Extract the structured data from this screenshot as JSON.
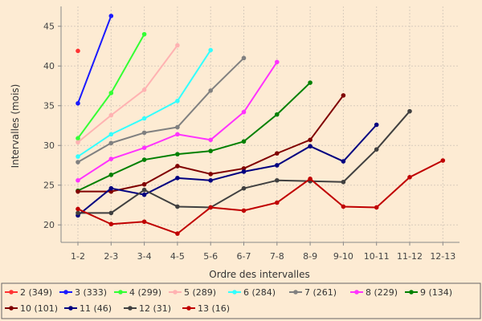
{
  "chart_data": {
    "type": "line",
    "title": "",
    "xlabel": "Ordre des intervalles",
    "ylabel": "Intervalles (mois)",
    "ylim": [
      17.8,
      47.5
    ],
    "yticks": [
      20,
      25,
      30,
      35,
      40,
      45
    ],
    "grid": true,
    "legend_position": "bottom",
    "categories": [
      "1-2",
      "2-3",
      "3-4",
      "4-5",
      "5-6",
      "6-7",
      "7-8",
      "8-9",
      "9-10",
      "10-11",
      "11-12",
      "12-13"
    ],
    "series": [
      {
        "name": "2 (349)",
        "color": "#ff3333",
        "values": [
          41.9,
          null,
          null,
          null,
          null,
          null,
          null,
          null,
          null,
          null,
          null,
          null
        ]
      },
      {
        "name": "3 (333)",
        "color": "#1a1aff",
        "values": [
          35.3,
          46.3,
          null,
          null,
          null,
          null,
          null,
          null,
          null,
          null,
          null,
          null
        ]
      },
      {
        "name": "4 (299)",
        "color": "#33ff33",
        "values": [
          30.9,
          36.6,
          44.0,
          null,
          null,
          null,
          null,
          null,
          null,
          null,
          null,
          null
        ]
      },
      {
        "name": "5 (289)",
        "color": "#ffb2b2",
        "values": [
          30.4,
          33.8,
          37.0,
          42.6,
          null,
          null,
          null,
          null,
          null,
          null,
          null,
          null
        ]
      },
      {
        "name": "6 (284)",
        "color": "#33ffff",
        "values": [
          28.6,
          31.4,
          33.4,
          35.6,
          42.0,
          null,
          null,
          null,
          null,
          null,
          null,
          null
        ]
      },
      {
        "name": "7 (261)",
        "color": "#808080",
        "values": [
          27.9,
          30.3,
          31.6,
          32.3,
          36.9,
          41.0,
          null,
          null,
          null,
          null,
          null,
          null
        ]
      },
      {
        "name": "8 (229)",
        "color": "#ff33ff",
        "values": [
          25.6,
          28.3,
          29.7,
          31.4,
          30.7,
          34.2,
          40.5,
          null,
          null,
          null,
          null,
          null
        ]
      },
      {
        "name": "9 (134)",
        "color": "#008000",
        "values": [
          24.3,
          26.3,
          28.2,
          28.9,
          29.3,
          30.5,
          33.9,
          37.9,
          null,
          null,
          null,
          null
        ]
      },
      {
        "name": "10 (101)",
        "color": "#800000",
        "values": [
          24.2,
          24.2,
          25.1,
          27.4,
          26.4,
          27.1,
          29.0,
          30.7,
          36.3,
          null,
          null,
          null
        ]
      },
      {
        "name": "11 (46)",
        "color": "#000080",
        "values": [
          21.2,
          24.6,
          23.8,
          25.9,
          25.6,
          26.7,
          27.5,
          29.9,
          28.0,
          32.6,
          null,
          null
        ]
      },
      {
        "name": "12 (31)",
        "color": "#404040",
        "values": [
          21.5,
          21.5,
          24.4,
          22.3,
          22.2,
          24.6,
          25.6,
          25.5,
          25.4,
          29.5,
          34.3,
          null
        ]
      },
      {
        "name": "13 (16)",
        "color": "#c00000",
        "values": [
          22.0,
          20.1,
          20.4,
          18.9,
          22.2,
          21.8,
          22.8,
          25.8,
          22.3,
          22.2,
          26.0,
          28.1
        ]
      }
    ]
  }
}
